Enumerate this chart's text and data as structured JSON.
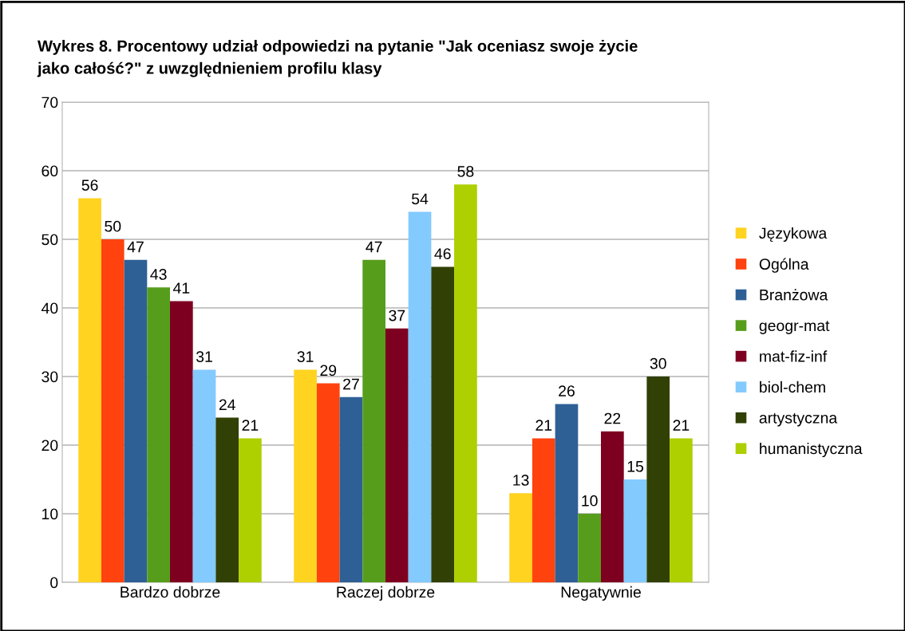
{
  "chart_data": {
    "type": "bar",
    "title": "Wykres 8. Procentowy udział odpowiedzi na pytanie \"Jak oceniasz swoje życie\njako całość?\" z uwzględnieniem profilu klasy",
    "categories": [
      "Bardzo dobrze",
      "Raczej dobrze",
      "Negatywnie"
    ],
    "series": [
      {
        "name": "Językowa",
        "color": "#ffd320",
        "values": [
          56,
          31,
          13
        ]
      },
      {
        "name": "Ogólna",
        "color": "#ff420e",
        "values": [
          50,
          29,
          21
        ]
      },
      {
        "name": "Branżowa",
        "color": "#2e6096",
        "values": [
          47,
          27,
          26
        ]
      },
      {
        "name": "geogr-mat",
        "color": "#579d1c",
        "values": [
          43,
          47,
          10
        ]
      },
      {
        "name": "mat-fiz-inf",
        "color": "#7e0021",
        "values": [
          41,
          37,
          22
        ]
      },
      {
        "name": "biol-chem",
        "color": "#83caff",
        "values": [
          31,
          54,
          15
        ]
      },
      {
        "name": "artystyczna",
        "color": "#314004",
        "values": [
          24,
          46,
          30
        ]
      },
      {
        "name": "humanistyczna",
        "color": "#aecf00",
        "values": [
          21,
          58,
          21
        ]
      }
    ],
    "ylim": [
      0,
      70
    ],
    "yticks": [
      0,
      10,
      20,
      30,
      40,
      50,
      60,
      70
    ],
    "grid": "y",
    "legend": "right",
    "data_labels": true
  }
}
